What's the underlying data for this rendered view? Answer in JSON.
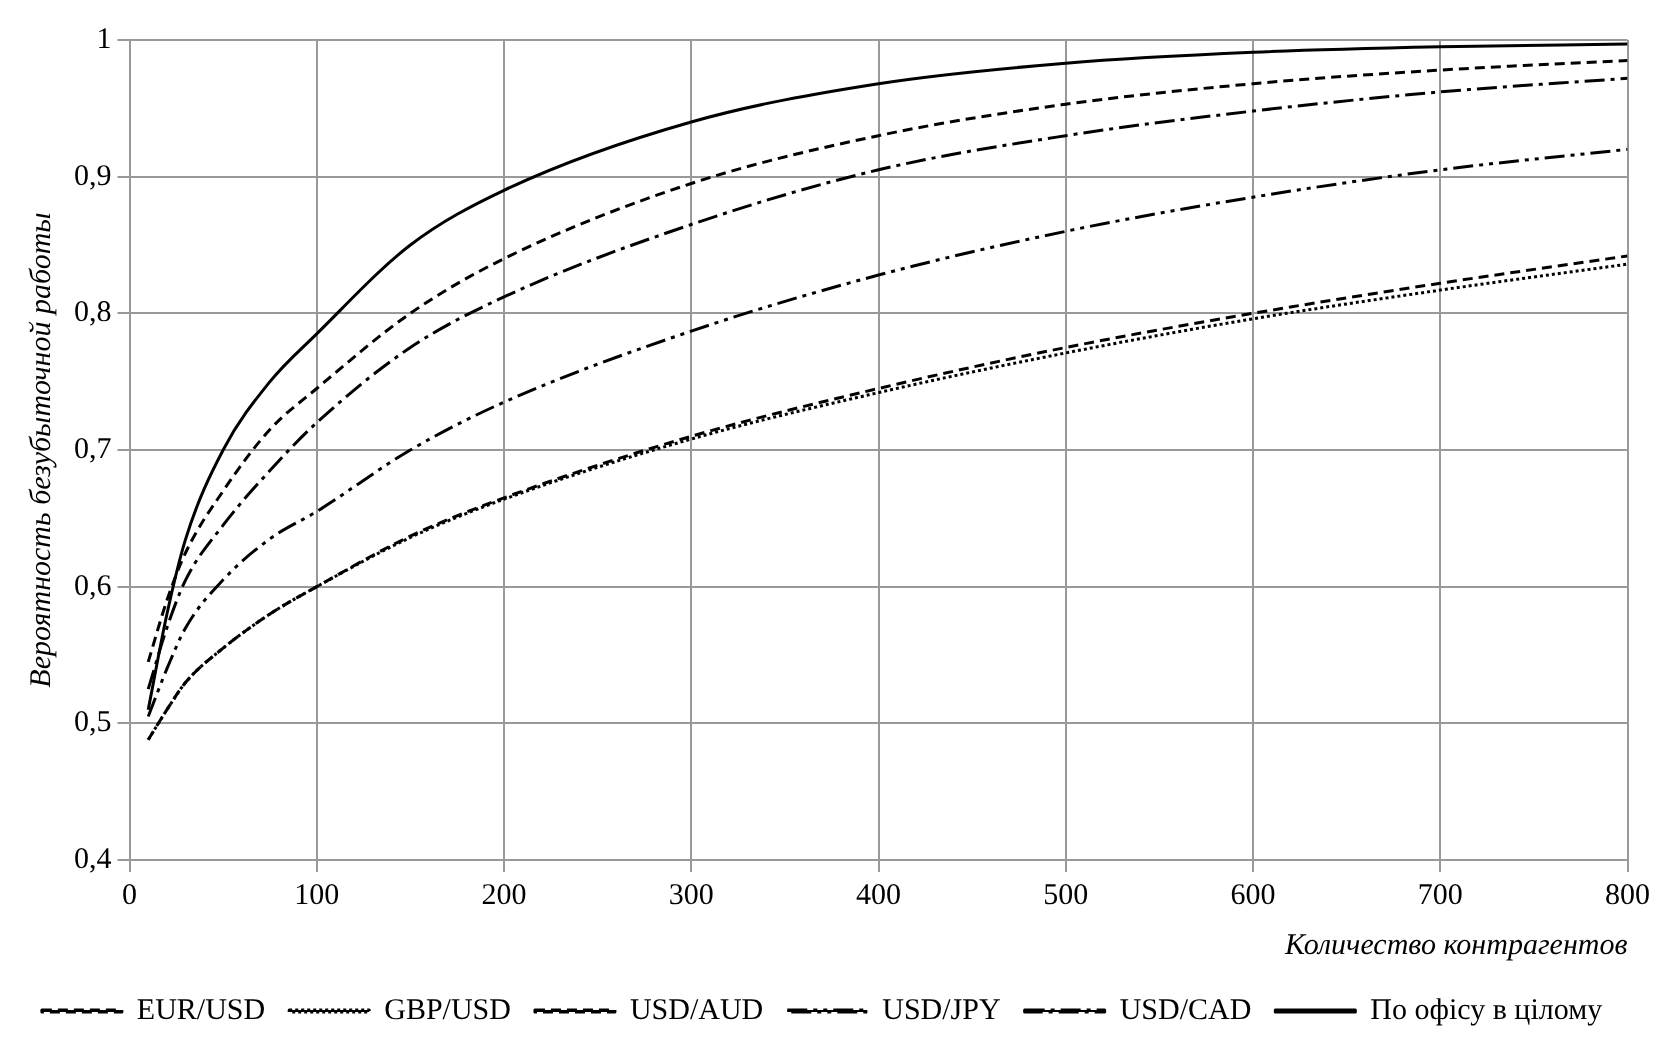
{
  "chart_data": {
    "type": "line",
    "xlabel": "Количество контрагентов",
    "ylabel": "Вероятность безубыточной работы",
    "x": [
      10,
      20,
      30,
      50,
      75,
      100,
      150,
      200,
      300,
      400,
      500,
      600,
      700,
      800
    ],
    "series": [
      {
        "name": "EUR/USD",
        "color": "#000000",
        "line_style": "dashed",
        "values": [
          0.488,
          0.51,
          0.53,
          0.555,
          0.58,
          0.6,
          0.637,
          0.665,
          0.71,
          0.745,
          0.775,
          0.8,
          0.822,
          0.842
        ]
      },
      {
        "name": "GBP/USD",
        "color": "#000000",
        "line_style": "dotted",
        "values": [
          0.488,
          0.51,
          0.53,
          0.555,
          0.58,
          0.6,
          0.636,
          0.664,
          0.708,
          0.742,
          0.771,
          0.796,
          0.817,
          0.836
        ]
      },
      {
        "name": "USD/AUD",
        "color": "#000000",
        "line_style": "dashed",
        "values": [
          0.545,
          0.59,
          0.625,
          0.67,
          0.715,
          0.745,
          0.8,
          0.84,
          0.895,
          0.93,
          0.953,
          0.968,
          0.978,
          0.985
        ]
      },
      {
        "name": "USD/JPY",
        "color": "#000000",
        "line_style": "dashdotdot",
        "values": [
          0.505,
          0.54,
          0.57,
          0.605,
          0.635,
          0.655,
          0.7,
          0.735,
          0.787,
          0.828,
          0.86,
          0.885,
          0.905,
          0.92
        ]
      },
      {
        "name": "USD/CAD",
        "color": "#000000",
        "line_style": "dashdot",
        "values": [
          0.525,
          0.57,
          0.605,
          0.645,
          0.685,
          0.72,
          0.775,
          0.812,
          0.865,
          0.905,
          0.93,
          0.948,
          0.962,
          0.972
        ]
      },
      {
        "name": "По офісу в цілому",
        "color": "#000000",
        "line_style": "solid",
        "values": [
          0.51,
          0.58,
          0.635,
          0.7,
          0.75,
          0.785,
          0.85,
          0.89,
          0.94,
          0.968,
          0.983,
          0.991,
          0.995,
          0.997
        ]
      }
    ],
    "xlim": [
      0,
      800
    ],
    "xticks": [
      0,
      100,
      200,
      300,
      400,
      500,
      600,
      700,
      800
    ],
    "ylim": [
      0.4,
      1
    ],
    "yticks": [
      {
        "value": 0.4,
        "label": "0,4"
      },
      {
        "value": 0.5,
        "label": "0,5"
      },
      {
        "value": 0.6,
        "label": "0,6"
      },
      {
        "value": 0.7,
        "label": "0,7"
      },
      {
        "value": 0.8,
        "label": "0,8"
      },
      {
        "value": 0.9,
        "label": "0,9"
      },
      1
    ],
    "grid": true,
    "legend": "bottom",
    "marker": "none"
  }
}
